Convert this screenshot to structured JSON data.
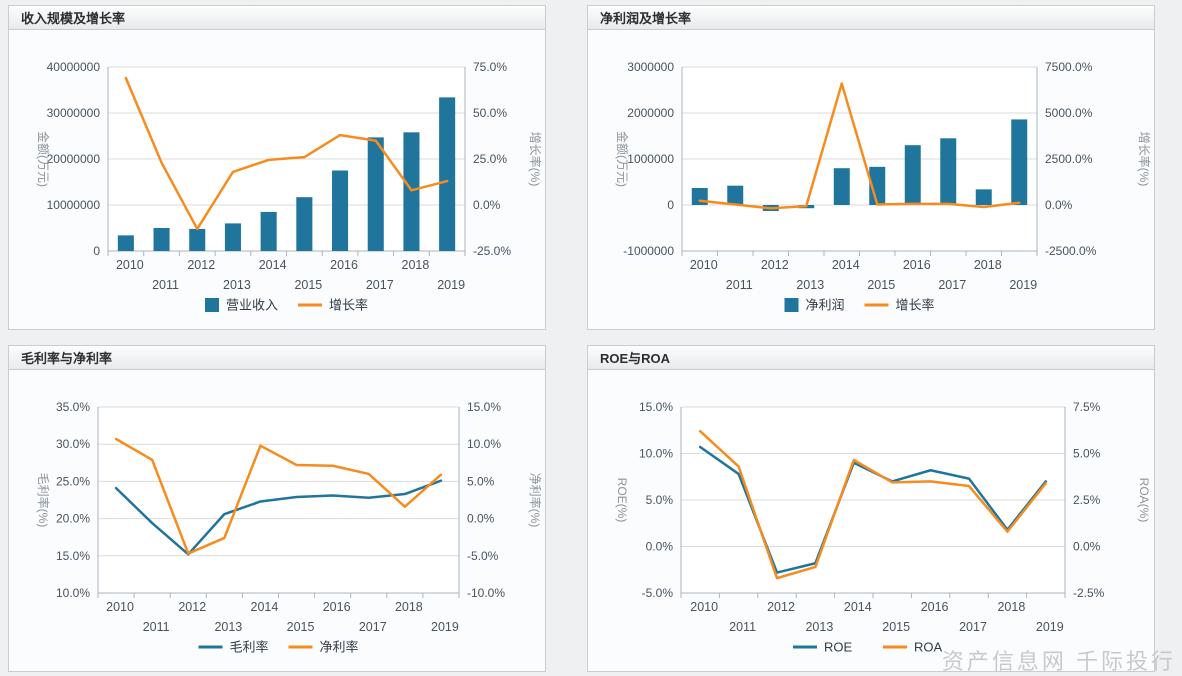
{
  "watermark": "资产信息网 千际投行",
  "panels": [
    {
      "title": "收入规模及增长率"
    },
    {
      "title": "净利润及增长率"
    },
    {
      "title": "毛利率与净利率"
    },
    {
      "title": "ROE与ROA"
    }
  ],
  "colors": {
    "bar_blue": "#20759d",
    "line_orange": "#f68c1e",
    "line_blue": "#20759d"
  },
  "chart_data": [
    {
      "type": "bar",
      "title": "收入规模及增长率",
      "categories": [
        "2010",
        "2011",
        "2012",
        "2013",
        "2014",
        "2015",
        "2016",
        "2017",
        "2018",
        "2019"
      ],
      "series": [
        {
          "name": "营业收入",
          "type": "bar",
          "axis": "left",
          "color": "#20759d",
          "values": [
            3400000,
            5000000,
            4800000,
            6000000,
            8500000,
            11700000,
            17500000,
            24700000,
            25800000,
            33400000
          ]
        },
        {
          "name": "增长率",
          "type": "line",
          "axis": "right",
          "color": "#f68c1e",
          "values": [
            69,
            23,
            -13,
            18,
            24.5,
            26,
            38,
            35,
            8,
            13
          ]
        }
      ],
      "left_axis": {
        "label": "金额(万元)",
        "min": 0,
        "max": 40000000,
        "step": 10000000,
        "format": "plain"
      },
      "right_axis": {
        "label": "增长率(%)",
        "min": -25,
        "max": 75,
        "step": 25,
        "format": "pct1"
      },
      "legend_position": "bottom",
      "grid": true
    },
    {
      "type": "bar",
      "title": "净利润及增长率",
      "categories": [
        "2010",
        "2011",
        "2012",
        "2013",
        "2014",
        "2015",
        "2016",
        "2017",
        "2018",
        "2019"
      ],
      "series": [
        {
          "name": "净利润",
          "type": "bar",
          "axis": "left",
          "color": "#20759d",
          "values": [
            370000,
            420000,
            -130000,
            -70000,
            800000,
            830000,
            1300000,
            1450000,
            340000,
            1860000
          ]
        },
        {
          "name": "增长率",
          "type": "line",
          "axis": "right",
          "color": "#f68c1e",
          "values": [
            230,
            30,
            -180,
            -60,
            6600,
            30,
            60,
            60,
            -110,
            120
          ]
        }
      ],
      "left_axis": {
        "label": "金额(万元)",
        "min": -1000000,
        "max": 3000000,
        "step": 1000000,
        "format": "plain"
      },
      "right_axis": {
        "label": "增长率(%)",
        "min": -2500,
        "max": 7500,
        "step": 2500,
        "format": "pct1"
      },
      "legend_position": "bottom",
      "grid": true
    },
    {
      "type": "line",
      "title": "毛利率与净利率",
      "categories": [
        "2010",
        "2011",
        "2012",
        "2013",
        "2014",
        "2015",
        "2016",
        "2017",
        "2018",
        "2019"
      ],
      "series": [
        {
          "name": "毛利率",
          "type": "line",
          "axis": "left",
          "color": "#20759d",
          "values": [
            24.1,
            19.4,
            15.2,
            20.6,
            22.3,
            22.9,
            23.1,
            22.8,
            23.3,
            25.1
          ]
        },
        {
          "name": "净利率",
          "type": "line",
          "axis": "right",
          "color": "#f68c1e",
          "values": [
            10.7,
            7.9,
            -4.7,
            -2.6,
            9.8,
            7.2,
            7.1,
            6.0,
            1.6,
            5.9
          ]
        }
      ],
      "left_axis": {
        "label": "毛利率(%)",
        "min": 10,
        "max": 35,
        "step": 5,
        "format": "pct1"
      },
      "right_axis": {
        "label": "净利率(%)",
        "min": -10,
        "max": 15,
        "step": 5,
        "format": "pct1"
      },
      "legend_position": "bottom",
      "grid": true
    },
    {
      "type": "line",
      "title": "ROE与ROA",
      "categories": [
        "2010",
        "2011",
        "2012",
        "2013",
        "2014",
        "2015",
        "2016",
        "2017",
        "2018",
        "2019"
      ],
      "series": [
        {
          "name": "ROE",
          "type": "line",
          "axis": "left",
          "color": "#20759d",
          "values": [
            10.7,
            7.8,
            -2.8,
            -1.8,
            9.0,
            7.0,
            8.2,
            7.3,
            1.8,
            7.0
          ]
        },
        {
          "name": "ROA",
          "type": "line",
          "axis": "right",
          "color": "#f68c1e",
          "values": [
            6.2,
            4.3,
            -1.7,
            -1.1,
            4.65,
            3.45,
            3.5,
            3.25,
            0.8,
            3.4
          ]
        }
      ],
      "left_axis": {
        "label": "ROE(%)",
        "min": -5,
        "max": 15,
        "step": 5,
        "format": "pct1"
      },
      "right_axis": {
        "label": "ROA(%)",
        "min": -2.5,
        "max": 7.5,
        "step": 2.5,
        "format": "pct1"
      },
      "legend_position": "bottom",
      "grid": true
    }
  ]
}
